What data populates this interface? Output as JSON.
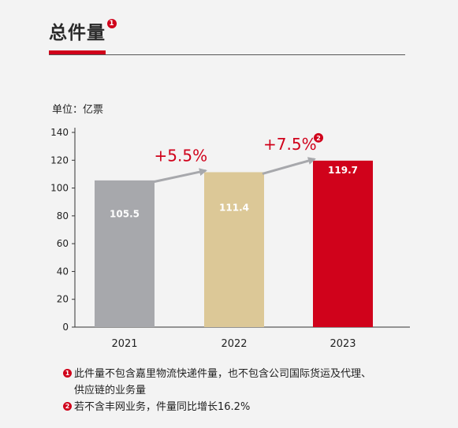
{
  "header": {
    "title": "总件量",
    "title_badge": "1"
  },
  "unit_label": "单位：亿票",
  "chart_data": {
    "type": "bar",
    "title": "总件量",
    "ylabel": "单位：亿票",
    "xlabel": "",
    "categories": [
      "2021",
      "2022",
      "2023"
    ],
    "values": [
      105.5,
      111.4,
      119.7
    ],
    "value_labels": [
      "105.5",
      "111.4",
      "119.7"
    ],
    "bar_colors": [
      "#a7a8ac",
      "#dcc897",
      "#d0021b"
    ],
    "ylim": [
      0,
      140
    ],
    "yticks": [
      0,
      20,
      40,
      60,
      80,
      100,
      120,
      140
    ],
    "grid": false,
    "annotations": [
      {
        "text": "+5.5%",
        "from": "2021",
        "to": "2022",
        "badge": ""
      },
      {
        "text": "+7.5%",
        "from": "2022",
        "to": "2023",
        "badge": "2"
      }
    ],
    "accent_color": "#d0021b"
  },
  "footnotes": [
    {
      "badge": "1",
      "line1": "此件量不包含嘉里物流快递件量，也不包含公司国际货运及代理、",
      "line2": "供应链的业务量"
    },
    {
      "badge": "2",
      "line1": "若不含丰网业务，件量同比增长16.2%",
      "line2": ""
    }
  ]
}
